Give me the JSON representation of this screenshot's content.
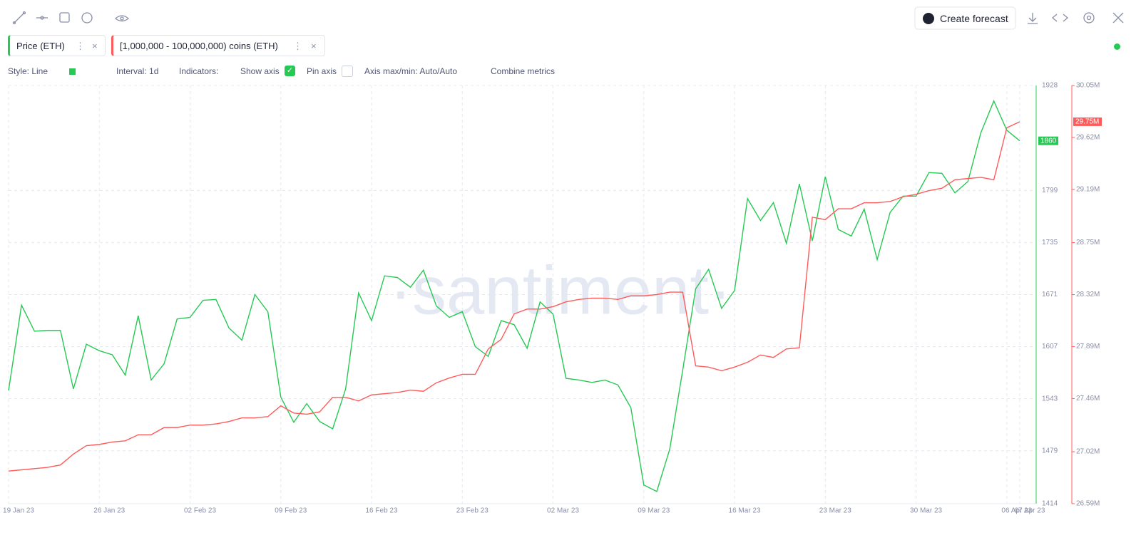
{
  "toolbar": {
    "create_forecast": "Create forecast"
  },
  "metrics": [
    "Price (ETH)",
    "[1,000,000 - 100,000,000) coins (ETH)"
  ],
  "settings": {
    "style": "Style: Line",
    "interval": "Interval: 1d",
    "indicators": "Indicators:",
    "show_axis": "Show axis",
    "pin_axis": "Pin axis",
    "axis_minmax": "Axis max/min: Auto/Auto",
    "combine": "Combine metrics"
  },
  "watermark": "·santiment·",
  "chart_data": {
    "type": "line",
    "categories": [
      "19 Jan 23",
      null,
      null,
      null,
      null,
      null,
      null,
      "26 Jan 23",
      null,
      null,
      null,
      null,
      null,
      null,
      "02 Feb 23",
      null,
      null,
      null,
      null,
      null,
      null,
      "09 Feb 23",
      null,
      null,
      null,
      null,
      null,
      null,
      "16 Feb 23",
      null,
      null,
      null,
      null,
      null,
      null,
      "23 Feb 23",
      null,
      null,
      null,
      null,
      null,
      null,
      "02 Mar 23",
      null,
      null,
      null,
      null,
      null,
      null,
      "09 Mar 23",
      null,
      null,
      null,
      null,
      null,
      null,
      "16 Mar 23",
      null,
      null,
      null,
      null,
      null,
      null,
      "23 Mar 23",
      null,
      null,
      null,
      null,
      null,
      null,
      "30 Mar 23",
      null,
      null,
      null,
      null,
      null,
      null,
      "06 Apr 23",
      "07 Apr 23"
    ],
    "series": [
      {
        "name": "Price (ETH)",
        "color": "#26c953",
        "values": [
          1553,
          1658,
          1626,
          1627,
          1627,
          1555,
          1610,
          1602,
          1597,
          1572,
          1645,
          1566,
          1586,
          1641,
          1643,
          1664,
          1665,
          1630,
          1615,
          1671,
          1650,
          1545,
          1514,
          1537,
          1515,
          1506,
          1555,
          1673,
          1639,
          1694,
          1692,
          1680,
          1701,
          1657,
          1643,
          1650,
          1607,
          1595,
          1639,
          1634,
          1605,
          1662,
          1647,
          1568,
          1566,
          1563,
          1566,
          1560,
          1532,
          1437,
          1429,
          1481,
          1578,
          1678,
          1702,
          1654,
          1676,
          1789,
          1762,
          1784,
          1734,
          1807,
          1737,
          1816,
          1751,
          1743,
          1776,
          1714,
          1772,
          1792,
          1792,
          1821,
          1820,
          1796,
          1810,
          1870,
          1909,
          1873,
          1860
        ]
      },
      {
        "name": "[1,000,000 - 100,000,000) coins (ETH)",
        "color": "#ff5b5b",
        "axis": "y2",
        "values": [
          26.86,
          26.87,
          26.88,
          26.89,
          26.91,
          27.0,
          27.07,
          27.08,
          27.1,
          27.11,
          27.16,
          27.16,
          27.22,
          27.22,
          27.24,
          27.24,
          27.25,
          27.27,
          27.3,
          27.3,
          27.31,
          27.4,
          27.34,
          27.33,
          27.35,
          27.47,
          27.47,
          27.44,
          27.49,
          27.5,
          27.51,
          27.53,
          27.52,
          27.59,
          27.63,
          27.66,
          27.66,
          27.87,
          27.95,
          28.16,
          28.2,
          28.2,
          28.22,
          28.26,
          28.28,
          28.29,
          28.29,
          28.28,
          28.31,
          28.31,
          28.32,
          28.34,
          28.34,
          27.73,
          27.72,
          27.69,
          27.72,
          27.76,
          27.82,
          27.8,
          27.87,
          27.88,
          28.96,
          28.94,
          29.03,
          29.03,
          29.08,
          29.08,
          29.09,
          29.13,
          29.15,
          29.18,
          29.2,
          29.27,
          29.28,
          29.29,
          29.27,
          29.7,
          29.75
        ],
        "value_labels": [
          null,
          null,
          null,
          null,
          null,
          null,
          null,
          null,
          null,
          null,
          null,
          null,
          null,
          null,
          null,
          null,
          null,
          null,
          null,
          null,
          null,
          null,
          null,
          null,
          null,
          null,
          null,
          null,
          null,
          null,
          null,
          null,
          null,
          null,
          null,
          null,
          null,
          null,
          null,
          null,
          null,
          null,
          null,
          null,
          null,
          null,
          null,
          null,
          null,
          null,
          null,
          null,
          null,
          null,
          null,
          null,
          null,
          null,
          null,
          null,
          null,
          null,
          null,
          null,
          null,
          null,
          null,
          null,
          null,
          null,
          null,
          null,
          null,
          null,
          null,
          null,
          null,
          null,
          "29.75M"
        ]
      }
    ],
    "ylim": [
      1414,
      1928
    ],
    "yticks": [
      1414,
      1479,
      1543,
      1607,
      1671,
      1735,
      1799,
      1928
    ],
    "y2lim": [
      26.59,
      30.05
    ],
    "y2ticks": [
      {
        "value": 26.59,
        "label": "26.59M"
      },
      {
        "value": 27.02,
        "label": "27.02M"
      },
      {
        "value": 27.46,
        "label": "27.46M"
      },
      {
        "value": 27.89,
        "label": "27.89M"
      },
      {
        "value": 28.32,
        "label": "28.32M"
      },
      {
        "value": 28.75,
        "label": "28.75M"
      },
      {
        "value": 29.19,
        "label": "29.19M"
      },
      {
        "value": 29.62,
        "label": "29.62M"
      },
      {
        "value": 30.05,
        "label": "30.05M"
      }
    ],
    "grid": true
  }
}
